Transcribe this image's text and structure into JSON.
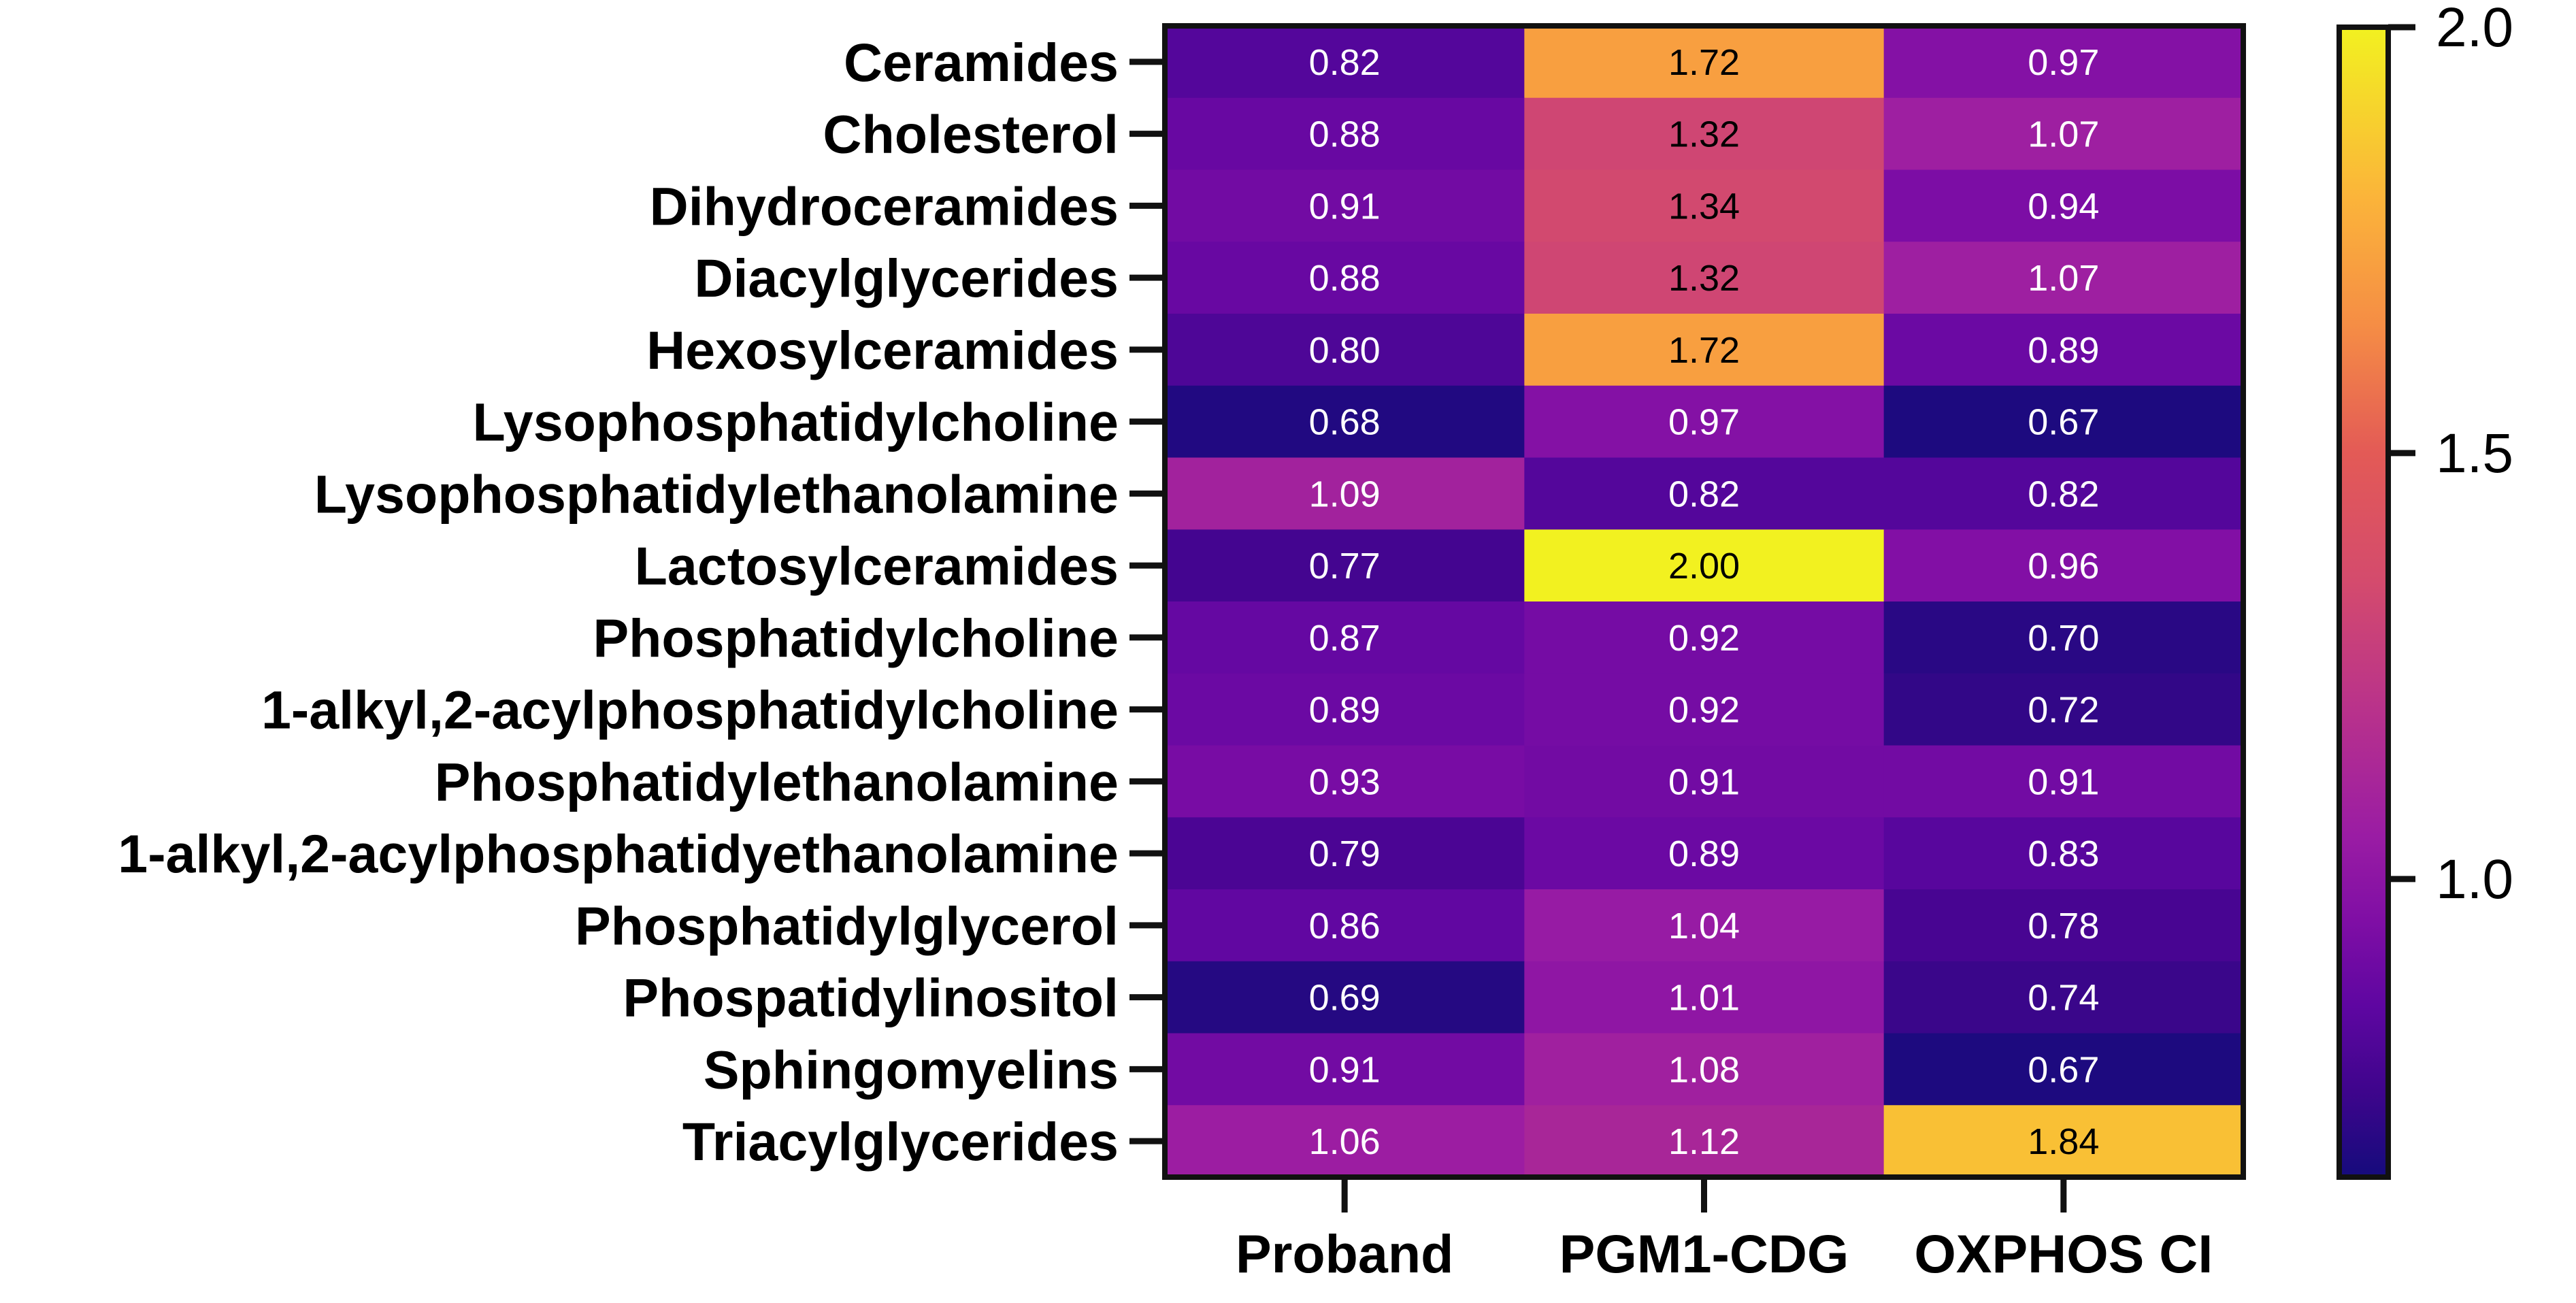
{
  "chart_data": {
    "type": "heatmap",
    "title": "",
    "xlabel": "",
    "ylabel": "",
    "columns": [
      "Proband",
      "PGM1-CDG",
      "OXPHOS CI"
    ],
    "rows": [
      "Ceramides",
      "Cholesterol",
      "Dihydroceramides",
      "Diacylglycerides",
      "Hexosylceramides",
      "Lysophosphatidylcholine",
      "Lysophosphatidylethanolamine",
      "Lactosylceramides",
      "Phosphatidylcholine",
      "1-alkyl,2-acylphosphatidylcholine",
      "Phosphatidylethanolamine",
      "1-alkyl,2-acylphosphatidyethanolamine",
      "Phosphatidylglycerol",
      "Phospatidylinositol",
      "Sphingomyelins",
      "Triacylglycerides"
    ],
    "values": [
      [
        0.82,
        1.72,
        0.97
      ],
      [
        0.88,
        1.32,
        1.07
      ],
      [
        0.91,
        1.34,
        0.94
      ],
      [
        0.88,
        1.32,
        1.07
      ],
      [
        0.8,
        1.72,
        0.89
      ],
      [
        0.68,
        0.97,
        0.67
      ],
      [
        1.09,
        0.82,
        0.82
      ],
      [
        0.77,
        2.0,
        0.96
      ],
      [
        0.87,
        0.92,
        0.7
      ],
      [
        0.89,
        0.92,
        0.72
      ],
      [
        0.93,
        0.91,
        0.91
      ],
      [
        0.79,
        0.89,
        0.83
      ],
      [
        0.86,
        1.04,
        0.78
      ],
      [
        0.69,
        1.01,
        0.74
      ],
      [
        0.91,
        1.08,
        0.67
      ],
      [
        1.06,
        1.12,
        1.84
      ]
    ],
    "value_labels": [
      [
        "0.82",
        "1.72",
        "0.97"
      ],
      [
        "0.88",
        "1.32",
        "1.07"
      ],
      [
        "0.91",
        "1.34",
        "0.94"
      ],
      [
        "0.88",
        "1.32",
        "1.07"
      ],
      [
        "0.80",
        "1.72",
        "0.89"
      ],
      [
        "0.68",
        "0.97",
        "0.67"
      ],
      [
        "1.09",
        "0.82",
        "0.82"
      ],
      [
        "0.77",
        "2.00",
        "0.96"
      ],
      [
        "0.87",
        "0.92",
        "0.70"
      ],
      [
        "0.89",
        "0.92",
        "0.72"
      ],
      [
        "0.93",
        "0.91",
        "0.91"
      ],
      [
        "0.79",
        "0.89",
        "0.83"
      ],
      [
        "0.86",
        "1.04",
        "0.78"
      ],
      [
        "0.69",
        "1.01",
        "0.74"
      ],
      [
        "0.91",
        "1.08",
        "0.67"
      ],
      [
        "1.06",
        "1.12",
        "1.84"
      ]
    ],
    "colorbar": {
      "range": [
        0.65,
        2.0
      ],
      "ticks": [
        1.0,
        1.5,
        2.0
      ],
      "tick_labels": [
        "1.0",
        "1.5",
        "2.0"
      ],
      "colormap": "plasma",
      "stops": [
        {
          "v": 0.65,
          "color": "#150b7c"
        },
        {
          "v": 0.75,
          "color": "#3e058c"
        },
        {
          "v": 0.85,
          "color": "#5e06a1"
        },
        {
          "v": 0.95,
          "color": "#7f0ea5"
        },
        {
          "v": 1.05,
          "color": "#9a1ca4"
        },
        {
          "v": 1.2,
          "color": "#b9328b"
        },
        {
          "v": 1.35,
          "color": "#d44b6d"
        },
        {
          "v": 1.5,
          "color": "#e35a56"
        },
        {
          "v": 1.65,
          "color": "#f58d45"
        },
        {
          "v": 1.8,
          "color": "#fbb43a"
        },
        {
          "v": 2.0,
          "color": "#f2f120"
        }
      ]
    },
    "dark_text_threshold": 1.25,
    "light_text_color": "#ffffff",
    "dark_text_color": "#000000"
  }
}
